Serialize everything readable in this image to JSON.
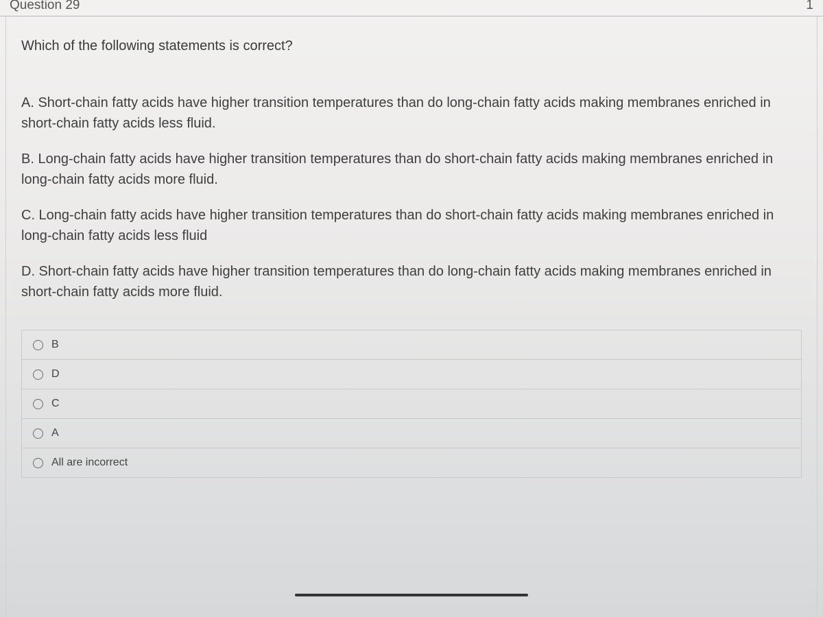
{
  "header": {
    "title": "Question 29",
    "points": "1"
  },
  "question": {
    "prompt": "Which of the following statements is correct?",
    "statements": [
      "A. Short-chain fatty acids have higher transition temperatures than do long-chain fatty acids making membranes enriched in short-chain fatty acids less fluid.",
      "B. Long-chain fatty acids have higher transition temperatures than do short-chain fatty acids making membranes enriched in long-chain fatty acids more fluid.",
      "C. Long-chain fatty acids have higher transition temperatures than do short-chain fatty acids making membranes enriched in long-chain fatty acids less fluid",
      "D. Short-chain fatty acids have higher transition temperatures than do long-chain fatty acids making membranes enriched in short-chain fatty acids more fluid."
    ]
  },
  "options": [
    {
      "label": "B"
    },
    {
      "label": "D"
    },
    {
      "label": "C"
    },
    {
      "label": "A"
    },
    {
      "label": "All are incorrect"
    }
  ],
  "colors": {
    "text": "#3a3a3a",
    "border": "#c9c9cb",
    "bg_top": "#f2f1f0",
    "bg_bottom": "#d6d8da"
  }
}
